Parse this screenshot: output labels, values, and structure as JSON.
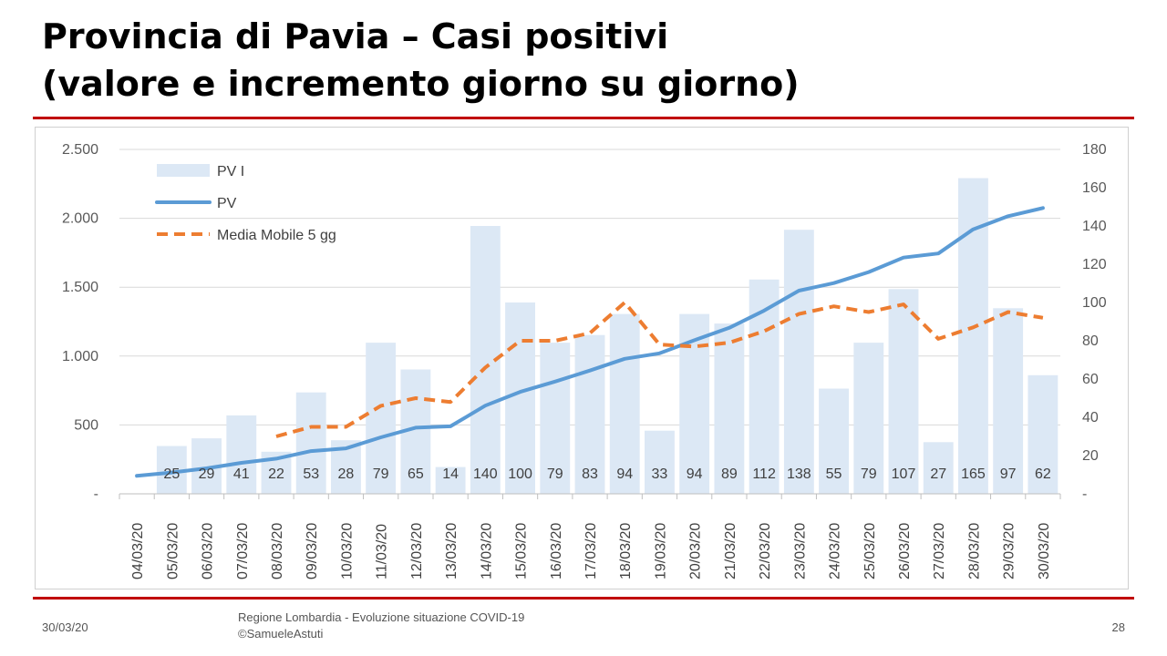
{
  "slide": {
    "title_line1": "Provincia di Pavia – Casi positivi",
    "title_line2": "(valore e incremento giorno su giorno)",
    "footer_date": "30/03/20",
    "footer_source_line1": "Regione Lombardia - Evoluzione situazione COVID-19",
    "footer_source_line2": "©SamueleAstuti",
    "page_number": "28",
    "accent_color": "#c00000"
  },
  "chart_data": {
    "type": "bar",
    "categories": [
      "04/03/20",
      "05/03/20",
      "06/03/20",
      "07/03/20",
      "08/03/20",
      "09/03/20",
      "10/03/20",
      "11/03/20",
      "12/03/20",
      "13/03/20",
      "14/03/20",
      "15/03/20",
      "16/03/20",
      "17/03/20",
      "18/03/20",
      "19/03/20",
      "20/03/20",
      "21/03/20",
      "22/03/20",
      "23/03/20",
      "24/03/20",
      "25/03/20",
      "26/03/20",
      "27/03/20",
      "28/03/20",
      "29/03/20",
      "30/03/20"
    ],
    "series": [
      {
        "name": "PV I",
        "kind": "bar",
        "axis": "right",
        "color": "#dce8f5",
        "values": [
          null,
          25,
          29,
          41,
          22,
          53,
          28,
          79,
          65,
          14,
          140,
          100,
          79,
          83,
          94,
          33,
          94,
          89,
          112,
          138,
          55,
          79,
          107,
          27,
          165,
          97,
          62
        ]
      },
      {
        "name": "PV",
        "kind": "line",
        "axis": "left",
        "color": "#5b9bd5",
        "values": [
          130,
          155,
          185,
          225,
          255,
          310,
          330,
          410,
          480,
          490,
          640,
          740,
          815,
          895,
          980,
          1020,
          1115,
          1205,
          1330,
          1475,
          1530,
          1610,
          1715,
          1745,
          1920,
          2015,
          2075
        ]
      },
      {
        "name": "Media Mobile 5 gg",
        "kind": "line",
        "dashed": true,
        "axis": "right",
        "color": "#ed7d31",
        "values": [
          null,
          null,
          null,
          null,
          30,
          35,
          35,
          46,
          50,
          48,
          66,
          80,
          80,
          84,
          100,
          78,
          77,
          79,
          85,
          94,
          98,
          95,
          99,
          81,
          87,
          95,
          92
        ]
      }
    ],
    "data_labels": [
      "",
      "25",
      "29",
      "41",
      "22",
      "53",
      "28",
      "79",
      "65",
      "14",
      "140",
      "100",
      "79",
      "83",
      "94",
      "33",
      "94",
      "89",
      "112",
      "138",
      "55",
      "79",
      "107",
      "27",
      "165",
      "97",
      "62"
    ],
    "left_axis": {
      "ylim": [
        0,
        2500
      ],
      "ticks": [
        "-",
        "500",
        "1.000",
        "1.500",
        "2.000",
        "2.500"
      ]
    },
    "right_axis": {
      "ylim": [
        0,
        180
      ],
      "ticks": [
        "-",
        "20",
        "40",
        "60",
        "80",
        "100",
        "120",
        "140",
        "160",
        "180"
      ]
    },
    "grid": true,
    "legend": "top-left"
  }
}
